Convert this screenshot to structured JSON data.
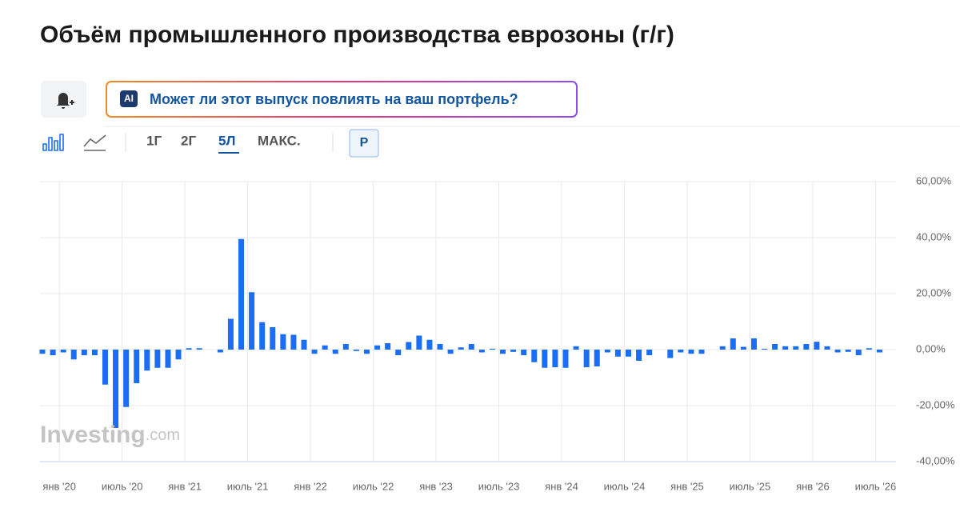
{
  "header": {
    "title": "Объём промышленного производства еврозоны (г/г)"
  },
  "ai_prompt": {
    "badge": "AI",
    "text": "Может ли этот выпуск повлиять на ваш портфель?"
  },
  "toolbar": {
    "ranges": [
      "1Г",
      "2Г",
      "5Л",
      "МАКС."
    ],
    "currency": "Р"
  },
  "watermark": {
    "brand": "Investing",
    "suffix": ".com"
  },
  "chart_data": {
    "type": "bar",
    "color": "#1a6ef5",
    "grid": true,
    "categories": [
      null,
      null,
      "янв '20",
      null,
      null,
      null,
      null,
      null,
      "июль '20",
      null,
      null,
      null,
      null,
      null,
      "янв '21",
      null,
      null,
      null,
      null,
      null,
      "июль '21",
      null,
      null,
      null,
      null,
      null,
      "янв '22",
      null,
      null,
      null,
      null,
      null,
      "июль '22",
      null,
      null,
      null,
      null,
      null,
      "янв '23",
      null,
      null,
      null,
      null,
      null,
      "июль '23",
      null,
      null,
      null,
      null,
      null,
      "янв '24",
      null,
      null,
      null,
      null,
      null,
      "июль '24",
      null,
      null,
      null,
      null,
      null,
      "янв '25",
      null,
      null,
      null,
      null,
      null,
      "июль '25",
      null,
      null,
      null,
      null,
      null,
      "янв '26",
      null,
      null,
      null,
      null,
      null,
      "июль '26"
    ],
    "values": [
      -1.5,
      -2,
      -1,
      -3.5,
      -2,
      -2,
      -12.5,
      -28,
      -20.5,
      -12,
      -7.5,
      -6.5,
      -6.5,
      -3.5,
      0.5,
      0.5,
      0,
      -1,
      11,
      39.5,
      20.5,
      9.8,
      8,
      5.5,
      5.3,
      3.5,
      -1.5,
      1.5,
      -1.5,
      2,
      -0.5,
      -1.5,
      1.5,
      2.3,
      -2,
      2.7,
      5,
      3.5,
      2,
      -1.5,
      0.8,
      2,
      -1,
      0.3,
      -1.5,
      -0.8,
      -2,
      -4.5,
      -6.5,
      -6.3,
      -6.5,
      1.2,
      -6.3,
      -6,
      -1,
      -2.5,
      -2.5,
      -4,
      -2,
      0,
      -3,
      -1,
      -1.5,
      -1.5,
      0,
      1.2,
      4,
      1,
      4,
      0.3,
      2,
      1.2,
      1.2,
      2,
      2.8,
      1.2,
      -1,
      -0.8,
      -2,
      0.5,
      -1
    ],
    "ylim": [
      -40,
      60
    ],
    "yticks": [
      {
        "value": -40,
        "label": "-40,00%"
      },
      {
        "value": -20,
        "label": "-20,00%"
      },
      {
        "value": 0,
        "label": "0,00%"
      },
      {
        "value": 20,
        "label": "20,00%"
      },
      {
        "value": 40,
        "label": "40,00%"
      },
      {
        "value": 60,
        "label": "60,00%"
      }
    ]
  }
}
